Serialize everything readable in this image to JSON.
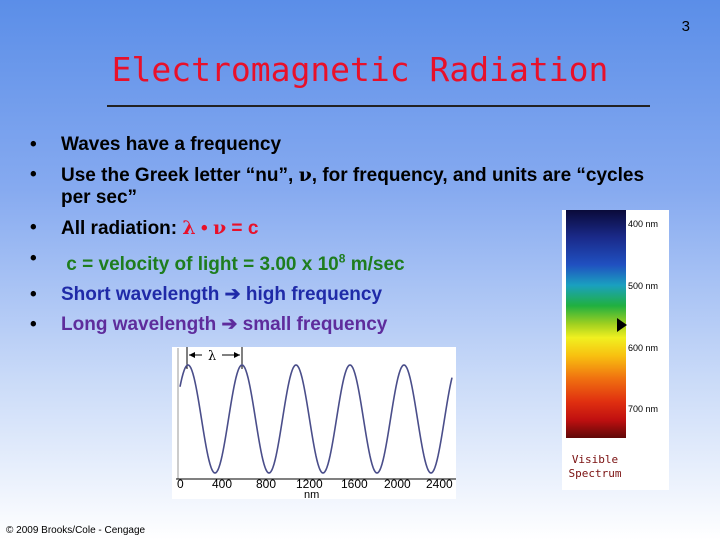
{
  "slide_number": "3",
  "title": "Electromagnetic Radiation",
  "bullets": {
    "b1": "Waves have a frequency",
    "b2_text": "Use the Greek letter “nu”,",
    "b2_nu": "ν",
    "b2_rest": ", for frequency, and units are “cycles per sec”",
    "b3_text": "All radiation:",
    "b3_lambda": "λ",
    "b3_dot": "•",
    "b3_nu": "ν",
    "b3_eq": "=",
    "b3_c": "c",
    "b4_text": "c = velocity of light = 3.00 x 10",
    "b4_exp": "8",
    "b4_unit": "m/sec",
    "b5_a": "Short wavelength",
    "b5_b": "high frequency",
    "b6_a": "Long wavelength",
    "b6_b": "small frequency"
  },
  "wave_figure": {
    "lambda_label": "λ",
    "x_ticks": [
      "0",
      "400",
      "800",
      "1200",
      "1600",
      "2000",
      "2400"
    ],
    "x_unit": "nm"
  },
  "spectrum": {
    "labels": [
      "400 nm",
      "500 nm",
      "600 nm",
      "700 nm"
    ],
    "caption_line1": "Visible",
    "caption_line2": "Spectrum"
  },
  "copyright": "© 2009 Brooks/Cole - Cengage",
  "colors": {
    "title": "#e8102a",
    "bullet_dark_blue": "#1f2aa8",
    "bullet_green": "#1e7d1e",
    "bullet_purple": "#5e2c9c"
  }
}
